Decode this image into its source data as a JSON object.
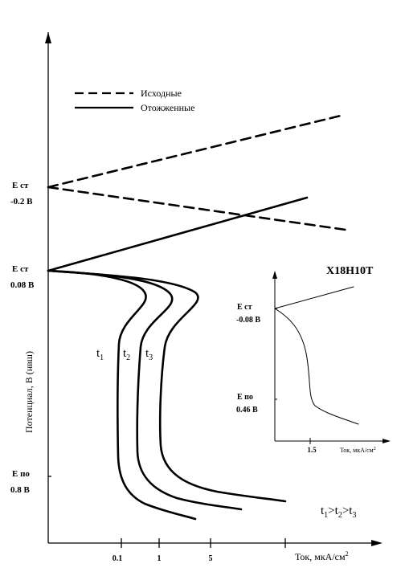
{
  "chart_data": [
    {
      "type": "line",
      "title": "",
      "xlabel": "Ток, мкА/см",
      "xlabel_sup": "2",
      "ylabel": "Потенциал, В (нвш)",
      "x_ticks": [
        "0.1",
        "1",
        "5"
      ],
      "y_ticks": [
        {
          "line1": "E ст",
          "line2": "-0.2 В"
        },
        {
          "line1": "E ст",
          "line2": "0.08 В"
        },
        {
          "line1": "E по",
          "line2": "0.8 В"
        }
      ],
      "legend": {
        "placement": "top-left",
        "entries": [
          {
            "label": "Исходные",
            "style": "dashed"
          },
          {
            "label": "Отожженные",
            "style": "solid"
          }
        ]
      },
      "series": [
        {
          "name": "Исходные",
          "style": "dashed",
          "branch": "anodic"
        },
        {
          "name": "Исходные",
          "style": "dashed",
          "branch": "cathodic"
        },
        {
          "name": "Отожженные",
          "style": "solid",
          "branch": "anodic"
        },
        {
          "name": "t1",
          "style": "solid",
          "label": {
            "base": "t",
            "sub": "1"
          }
        },
        {
          "name": "t2",
          "style": "solid",
          "label": {
            "base": "t",
            "sub": "2"
          }
        },
        {
          "name": "t3",
          "style": "solid",
          "label": {
            "base": "t",
            "sub": "3"
          }
        }
      ],
      "annotation": {
        "parts": [
          [
            "t",
            "1"
          ],
          [
            ">t",
            "2"
          ],
          [
            ">t",
            "3"
          ]
        ]
      }
    },
    {
      "type": "line",
      "title": "Х18Н10Т",
      "xlabel": "Ток, мкА/см",
      "xlabel_sup": "2",
      "x_ticks": [
        "1.5"
      ],
      "y_ticks": [
        {
          "line1": "E ст",
          "line2": "-0.08 В"
        },
        {
          "line1": "E по",
          "line2": "0.46 В"
        }
      ],
      "series": [
        {
          "name": "anodic",
          "style": "solid"
        },
        {
          "name": "cathodic",
          "style": "solid"
        }
      ]
    }
  ],
  "colors": {
    "ink": "#000000",
    "background": "#ffffff"
  }
}
